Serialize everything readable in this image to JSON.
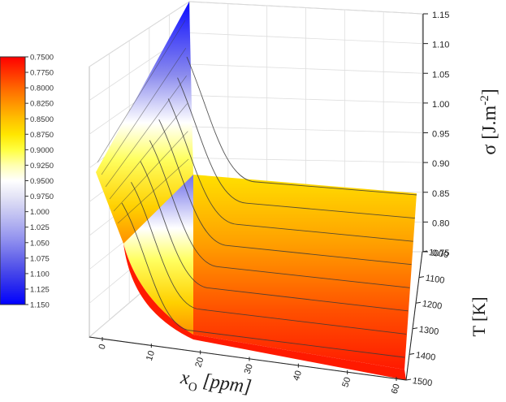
{
  "chart_data": {
    "type": "surface3d",
    "title": "",
    "axes": {
      "x": {
        "label": "x",
        "label_sub": "O",
        "label_unit": "[ppm]",
        "range": [
          0,
          60
        ],
        "ticks": [
          "0",
          "10",
          "20",
          "30",
          "40",
          "50",
          "60"
        ]
      },
      "y": {
        "label": "T [K]",
        "range": [
          1000,
          1500
        ],
        "ticks": [
          "1000",
          "1100",
          "1200",
          "1300",
          "1400",
          "1500"
        ]
      },
      "z": {
        "label": "σ [J.m",
        "label_sup": "-2",
        "label_end": "]",
        "range": [
          0.75,
          1.15
        ],
        "ticks": [
          "0.75",
          "0.80",
          "0.85",
          "0.90",
          "0.95",
          "1.00",
          "1.05",
          "1.10",
          "1.15"
        ]
      }
    },
    "colorbar": {
      "placement": "left",
      "labels": [
        "0.7500",
        "0.7750",
        "0.8000",
        "0.8250",
        "0.8500",
        "0.8750",
        "0.9000",
        "0.9250",
        "0.9500",
        "0.9750",
        "1.000",
        "1.025",
        "1.050",
        "1.075",
        "1.100",
        "1.125",
        "1.150"
      ],
      "colors": [
        "#ff0000",
        "#ff3300",
        "#ff6600",
        "#ff9400",
        "#ffc000",
        "#ffe600",
        "#ffff40",
        "#ffffb0",
        "#ffffff",
        "#e4e4f6",
        "#c8c8f2",
        "#aaaaf0",
        "#8a8aee",
        "#6666ea",
        "#4444ea",
        "#2222f0",
        "#0000ff"
      ]
    },
    "surface": {
      "corners": {
        "x0_T1000": 1.15,
        "x0_T1500": 0.9,
        "x60_T1000": 0.85,
        "x60_T1500": 0.75
      },
      "plateau_start_x": 20
    },
    "grid": true
  }
}
